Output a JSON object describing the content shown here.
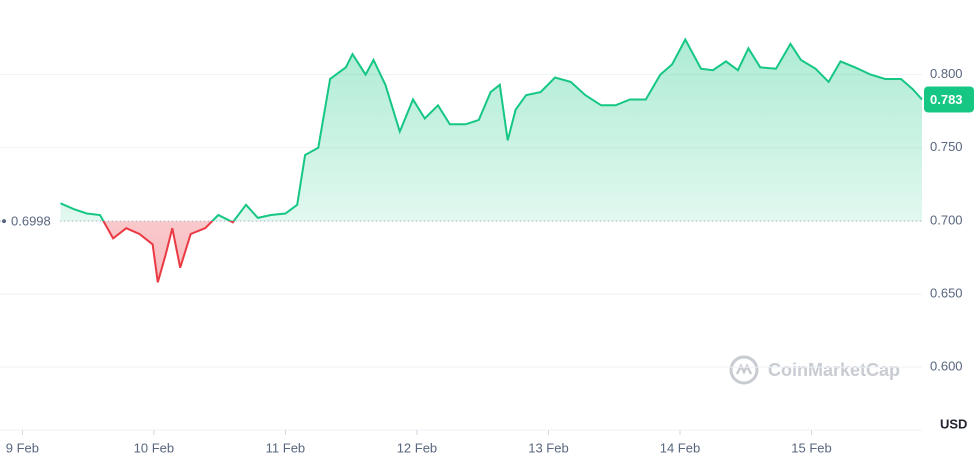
{
  "chart_data": {
    "type": "line",
    "baseline": 0.6998,
    "baseline_label": "0.6998",
    "last_price": 0.783,
    "currency": "USD",
    "watermark": "CoinMarketCap",
    "up_color": "#16c784",
    "down_color": "#ea3943",
    "xlim": [
      -0.17,
      6.84
    ],
    "ylim": [
      0.557,
      0.851
    ],
    "yticks": [
      {
        "value": 0.6,
        "label": "0.600"
      },
      {
        "value": 0.65,
        "label": "0.650"
      },
      {
        "value": 0.7,
        "label": "0.700"
      },
      {
        "value": 0.75,
        "label": "0.750"
      },
      {
        "value": 0.8,
        "label": "0.800"
      }
    ],
    "xticks": [
      {
        "value": 0,
        "label": "9 Feb"
      },
      {
        "value": 1,
        "label": "10 Feb"
      },
      {
        "value": 2,
        "label": "11 Feb"
      },
      {
        "value": 3,
        "label": "12 Feb"
      },
      {
        "value": 4,
        "label": "13 Feb"
      },
      {
        "value": 5,
        "label": "14 Feb"
      },
      {
        "value": 6,
        "label": "15 Feb"
      }
    ],
    "x": [
      0.29,
      0.39,
      0.49,
      0.59,
      0.69,
      0.79,
      0.89,
      0.99,
      1.03,
      1.09,
      1.14,
      1.2,
      1.28,
      1.39,
      1.49,
      1.6,
      1.7,
      1.79,
      1.89,
      2.0,
      2.09,
      2.15,
      2.25,
      2.34,
      2.46,
      2.51,
      2.61,
      2.67,
      2.76,
      2.87,
      2.97,
      3.06,
      3.16,
      3.25,
      3.37,
      3.47,
      3.56,
      3.63,
      3.69,
      3.75,
      3.83,
      3.94,
      4.05,
      4.17,
      4.28,
      4.4,
      4.51,
      4.62,
      4.74,
      4.85,
      4.94,
      5.04,
      5.16,
      5.25,
      5.35,
      5.44,
      5.52,
      5.61,
      5.73,
      5.84,
      5.92,
      6.03,
      6.13,
      6.22,
      6.33,
      6.45,
      6.56,
      6.68,
      6.77,
      6.84
    ],
    "values": [
      0.712,
      0.708,
      0.705,
      0.704,
      0.688,
      0.695,
      0.691,
      0.684,
      0.658,
      0.677,
      0.695,
      0.668,
      0.691,
      0.695,
      0.704,
      0.699,
      0.711,
      0.702,
      0.704,
      0.705,
      0.711,
      0.745,
      0.75,
      0.797,
      0.805,
      0.814,
      0.8,
      0.81,
      0.793,
      0.761,
      0.783,
      0.77,
      0.779,
      0.766,
      0.766,
      0.769,
      0.788,
      0.793,
      0.755,
      0.776,
      0.786,
      0.788,
      0.798,
      0.795,
      0.786,
      0.779,
      0.779,
      0.783,
      0.783,
      0.8,
      0.807,
      0.824,
      0.804,
      0.803,
      0.809,
      0.803,
      0.818,
      0.805,
      0.804,
      0.821,
      0.81,
      0.804,
      0.795,
      0.809,
      0.805,
      0.8,
      0.797,
      0.797,
      0.79,
      0.783
    ]
  }
}
